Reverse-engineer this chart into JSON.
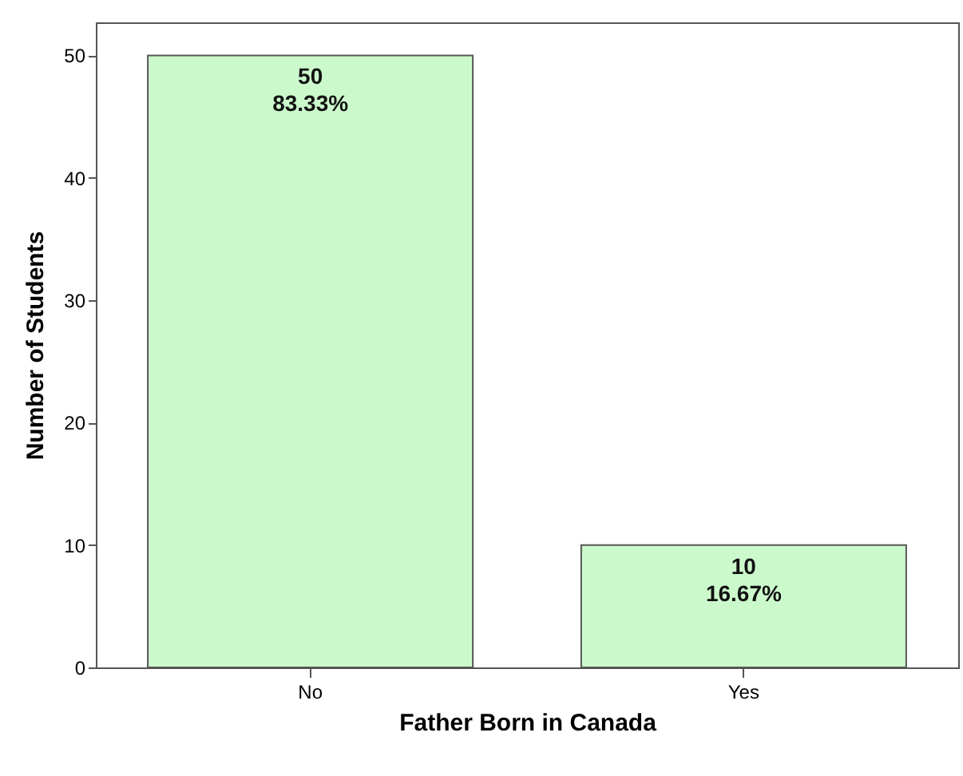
{
  "chart_data": {
    "type": "bar",
    "xlabel": "Father Born in Canada",
    "ylabel": "Number of Students",
    "categories": [
      "No",
      "Yes"
    ],
    "values": [
      50,
      10
    ],
    "color": "#ccf9cc",
    "value_labels": [
      "50\n83.33%",
      "10\n16.67%"
    ],
    "ylim": [
      0,
      52.7
    ],
    "yticks": [
      0,
      10,
      20,
      30,
      40,
      50
    ],
    "grid": false
  }
}
